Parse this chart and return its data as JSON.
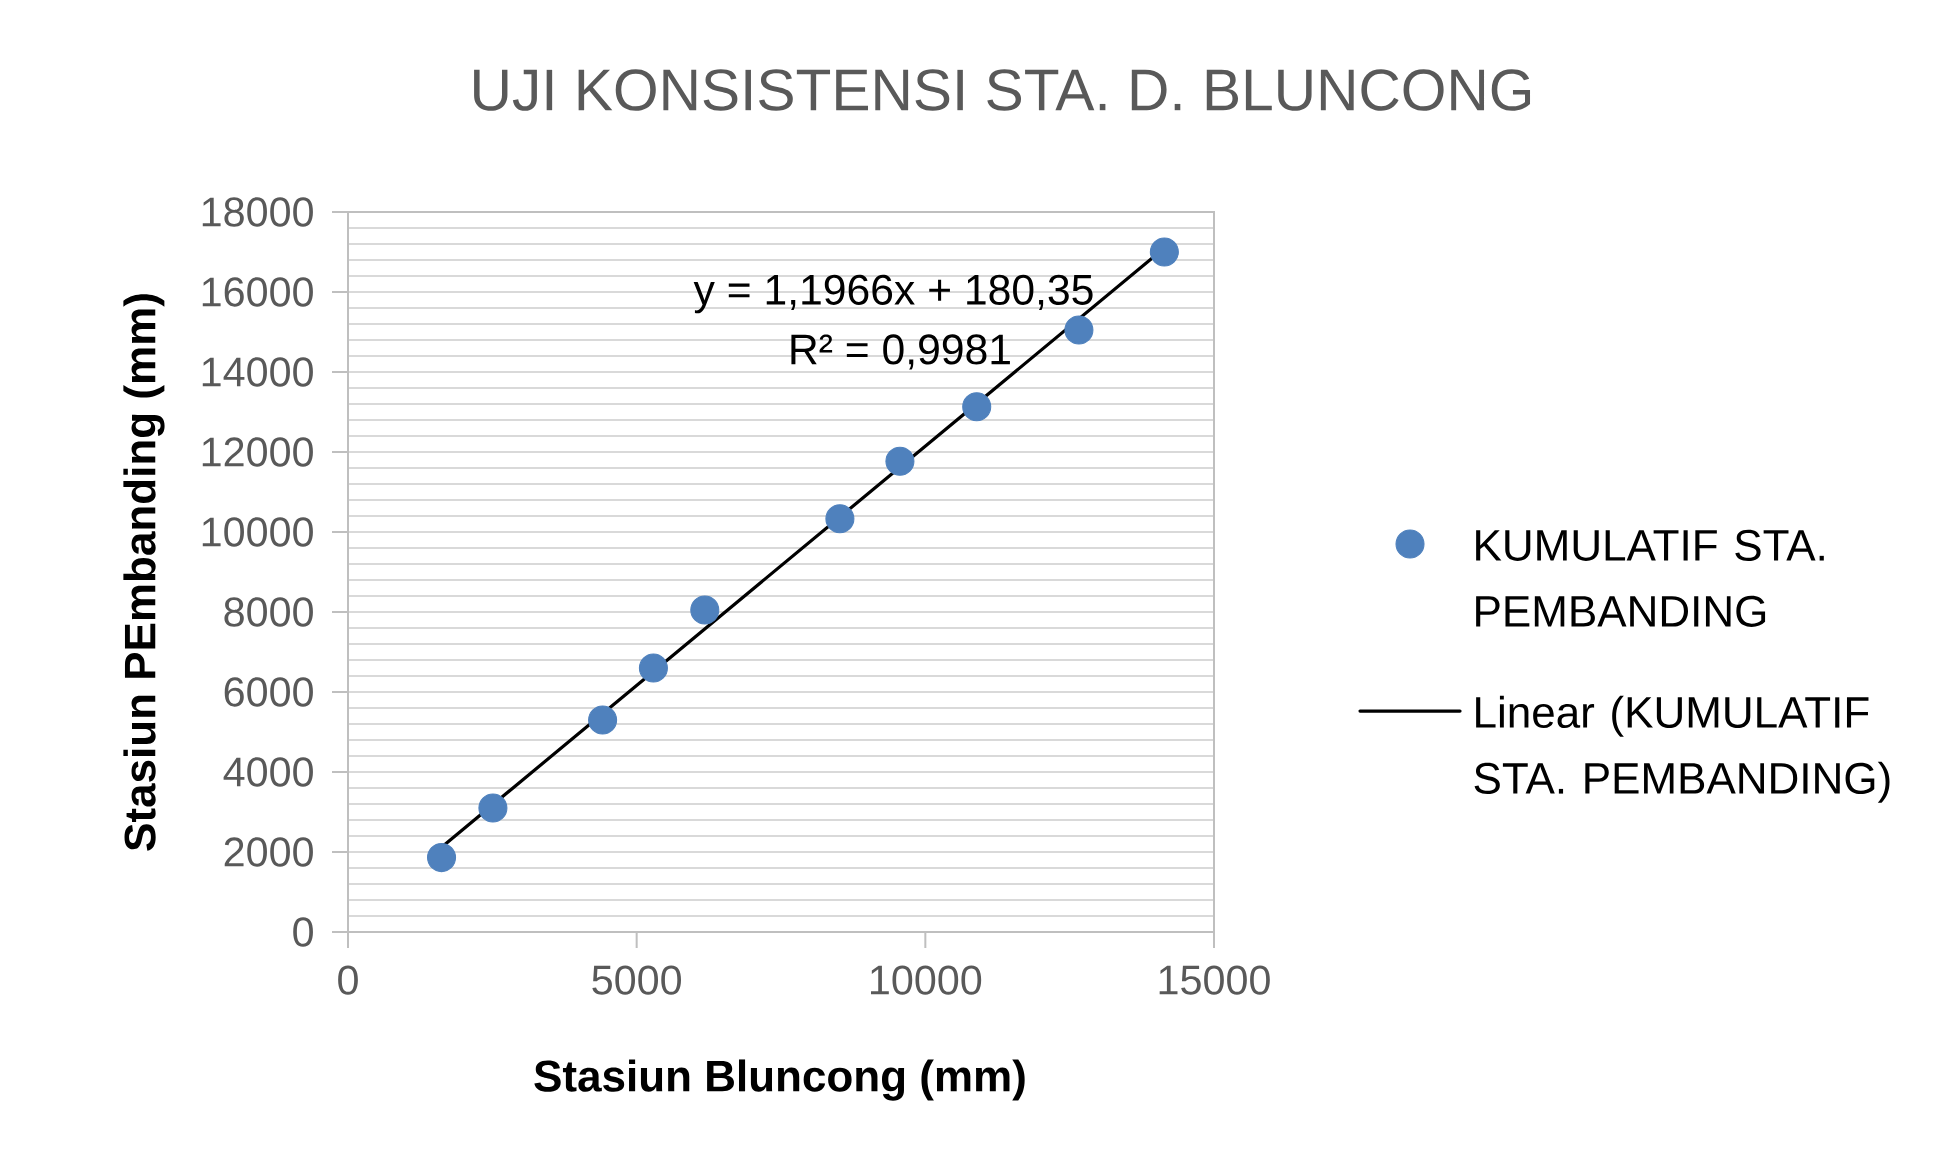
{
  "chart_data": {
    "type": "scatter",
    "title": "UJI KONSISTENSI STA. D. BLUNCONG",
    "xlabel": "Stasiun Bluncong (mm)",
    "ylabel": "Stasiun PEmbanding (mm)",
    "annotations": [
      "y = 1,1966x + 180,35",
      "R² = 0,9981"
    ],
    "x": [
      1620,
      2510,
      4410,
      5290,
      6180,
      8520,
      9560,
      10890,
      12660,
      14140
    ],
    "series": [
      {
        "name": "KUMULATIF STA. PEMBANDING",
        "color": "#4f81bd",
        "values": [
          1860,
          3100,
          5300,
          6600,
          8050,
          10330,
          11770,
          13130,
          15050,
          17000
        ]
      },
      {
        "name": "Linear (KUMULATIF STA. PEMBANDING)",
        "type": "line",
        "color": "#000000",
        "marker": "none",
        "x": [
          1620,
          14140
        ],
        "values": [
          2120,
          17100
        ]
      }
    ],
    "xlim": [
      0,
      15000
    ],
    "ylim": [
      0,
      18000
    ],
    "xticks": [
      0,
      5000,
      10000,
      15000
    ],
    "yticks": [
      0,
      2000,
      4000,
      6000,
      8000,
      10000,
      12000,
      14000,
      16000,
      18000
    ],
    "grid": "y",
    "legend": "right",
    "marker": "circle"
  }
}
